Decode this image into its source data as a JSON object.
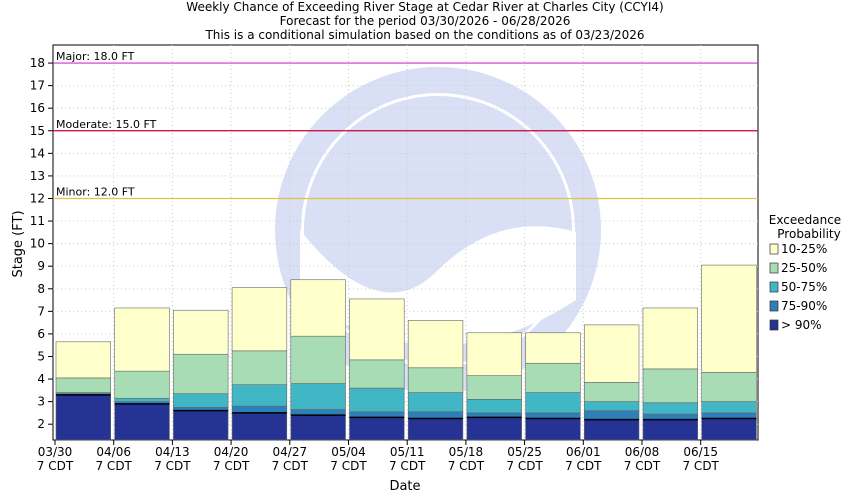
{
  "chart_data": {
    "type": "bar",
    "title": "Weekly Chance of Exceeding River Stage at Cedar River at Charles City (CCYI4)",
    "subtitle": "Forecast for the period 03/30/2026 - 06/28/2026",
    "subtitle2": "This is a conditional simulation based on the conditions as of 03/23/2026",
    "xlabel": "Date",
    "ylabel": "Stage (FT)",
    "ylim": [
      1.3,
      18.8
    ],
    "yticks": [
      2,
      3,
      4,
      5,
      6,
      7,
      8,
      9,
      10,
      11,
      12,
      13,
      14,
      15,
      16,
      17,
      18
    ],
    "x_ticks": [
      {
        "date": "03/30",
        "time": "7 CDT"
      },
      {
        "date": "04/06",
        "time": "7 CDT"
      },
      {
        "date": "04/13",
        "time": "7 CDT"
      },
      {
        "date": "04/20",
        "time": "7 CDT"
      },
      {
        "date": "04/27",
        "time": "7 CDT"
      },
      {
        "date": "05/04",
        "time": "7 CDT"
      },
      {
        "date": "05/11",
        "time": "7 CDT"
      },
      {
        "date": "05/18",
        "time": "7 CDT"
      },
      {
        "date": "05/25",
        "time": "7 CDT"
      },
      {
        "date": "06/01",
        "time": "7 CDT"
      },
      {
        "date": "06/08",
        "time": "7 CDT"
      },
      {
        "date": "06/15",
        "time": "7 CDT"
      }
    ],
    "thresholds": [
      {
        "label": "Major: 18.0 FT",
        "value": 18.0,
        "color": "#cc33cc"
      },
      {
        "label": "Moderate: 15.0 FT",
        "value": 15.0,
        "color": "#cc0033"
      },
      {
        "label": "Minor: 12.0 FT",
        "value": 12.0,
        "color": "#e8c040"
      }
    ],
    "legend": {
      "title_line1": "Exceedance",
      "title_line2": "Probability",
      "placement": "right",
      "entries": [
        {
          "name": "10-25%",
          "color": "#ffffcc"
        },
        {
          "name": "25-50%",
          "color": "#a8dcb4"
        },
        {
          "name": "50-75%",
          "color": "#41b6c4"
        },
        {
          "name": "75-90%",
          "color": "#2c7fb8"
        },
        {
          "name": "> 90%",
          "color": "#253494"
        }
      ]
    },
    "series": [
      {
        "name": "> 90%",
        "values": [
          3.3,
          2.9,
          2.6,
          2.5,
          2.4,
          2.3,
          2.25,
          2.3,
          2.25,
          2.2,
          2.2,
          2.25
        ]
      },
      {
        "name": "75-90%",
        "values": [
          3.35,
          3.0,
          2.75,
          2.8,
          2.65,
          2.55,
          2.55,
          2.5,
          2.5,
          2.6,
          2.45,
          2.5
        ]
      },
      {
        "name": "50-75%",
        "values": [
          3.4,
          3.15,
          3.35,
          3.75,
          3.8,
          3.6,
          3.4,
          3.1,
          3.4,
          3.0,
          2.95,
          3.0
        ]
      },
      {
        "name": "25-50%",
        "values": [
          4.05,
          4.35,
          5.1,
          5.25,
          5.9,
          4.85,
          4.5,
          4.15,
          4.7,
          3.85,
          4.45,
          4.3
        ]
      },
      {
        "name": "10-25%",
        "values": [
          5.65,
          7.15,
          7.05,
          8.05,
          8.4,
          7.55,
          6.6,
          6.05,
          6.05,
          6.4,
          7.15,
          9.05
        ]
      }
    ]
  }
}
